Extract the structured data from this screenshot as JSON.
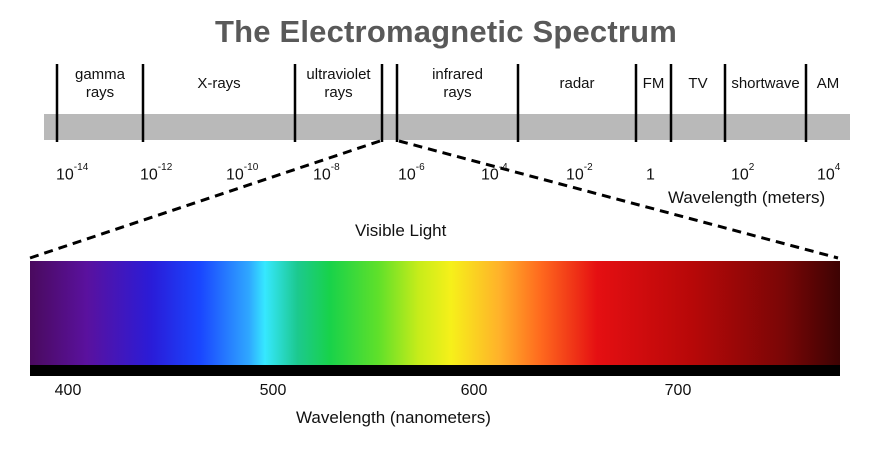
{
  "title": "The Electromagnetic Spectrum",
  "bands": [
    {
      "label_line1": "gamma",
      "label_line2": "rays"
    },
    {
      "label_line1": "X-rays",
      "label_line2": ""
    },
    {
      "label_line1": "ultraviolet",
      "label_line2": "rays"
    },
    {
      "label_line1": "infrared",
      "label_line2": "rays"
    },
    {
      "label_line1": "radar",
      "label_line2": ""
    },
    {
      "label_line1": "FM",
      "label_line2": ""
    },
    {
      "label_line1": "TV",
      "label_line2": ""
    },
    {
      "label_line1": "shortwave",
      "label_line2": ""
    },
    {
      "label_line1": "AM",
      "label_line2": ""
    }
  ],
  "wavelength_ticks": [
    {
      "base": "10",
      "exp": "-14"
    },
    {
      "base": "10",
      "exp": "-12"
    },
    {
      "base": "10",
      "exp": "-10"
    },
    {
      "base": "10",
      "exp": "-8"
    },
    {
      "base": "10",
      "exp": "-6"
    },
    {
      "base": "10",
      "exp": "-4"
    },
    {
      "base": "10",
      "exp": "-2"
    },
    {
      "base": "1",
      "exp": ""
    },
    {
      "base": "10",
      "exp": "2"
    },
    {
      "base": "10",
      "exp": "4"
    }
  ],
  "wavelength_unit": "Wavelength (meters)",
  "visible_light_label": "Visible Light",
  "nm_ticks": [
    "400",
    "500",
    "600",
    "700"
  ],
  "nm_unit": "Wavelength (nanometers)",
  "colors": {
    "title": "#595959",
    "band_bar": "#b9b9b9",
    "line": "#000000"
  }
}
